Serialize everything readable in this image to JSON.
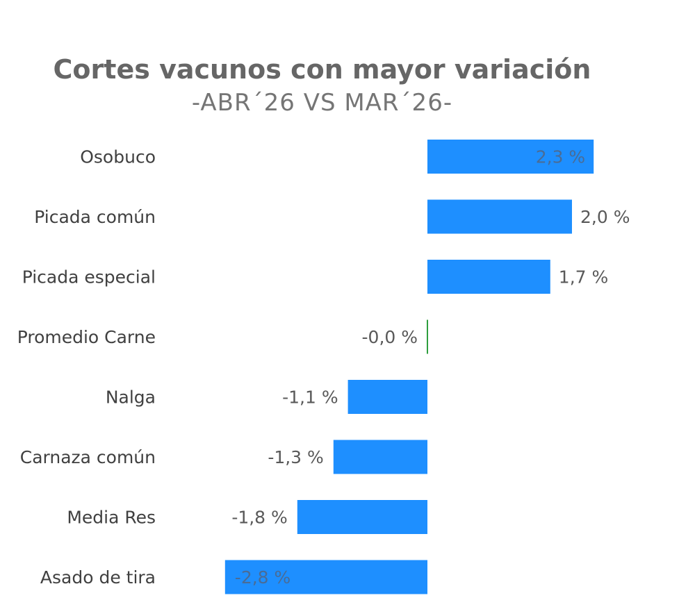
{
  "chart_data": {
    "type": "bar",
    "orientation": "horizontal",
    "title": "Cortes vacunos con mayor variación",
    "subtitle": "-ABR´26 VS MAR´26-",
    "categories": [
      "Osobuco",
      "Picada común",
      "Picada especial",
      "Promedio Carne",
      "Nalga",
      "Carnaza común",
      "Media Res",
      "Asado de tira"
    ],
    "values": [
      2.3,
      2.0,
      1.7,
      -0.0,
      -1.1,
      -1.3,
      -1.8,
      -2.8
    ],
    "value_labels": [
      "2,3 %",
      "2,0 %",
      "1,7 %",
      "-0,0 %",
      "-1,1 %",
      "-1,3 %",
      "-1,8 %",
      "-2,8 %"
    ],
    "unit": "%",
    "xlim": [
      -2.8,
      2.3
    ],
    "grid": false,
    "legend": "none",
    "colors": {
      "bar": "#1e8fff",
      "highlight": "#2e9e3e"
    },
    "highlight_category": "Promedio Carne"
  }
}
